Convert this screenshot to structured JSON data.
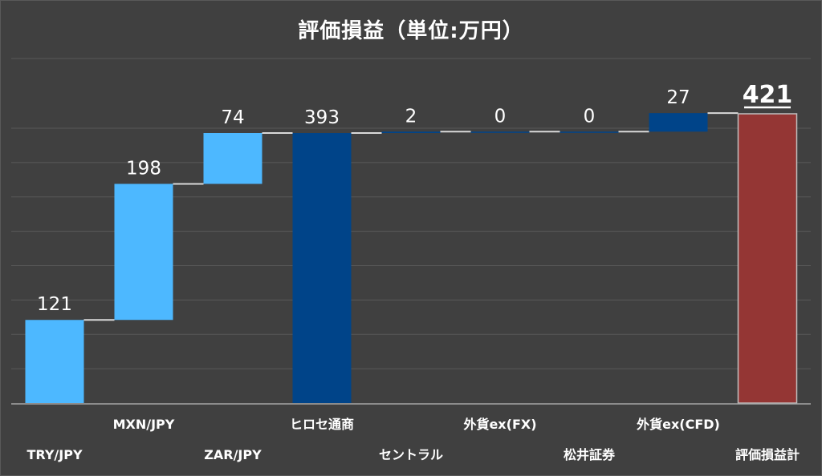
{
  "chart_data": {
    "type": "bar",
    "subtype": "waterfall",
    "title": "評価損益（単位:万円）",
    "categories": [
      "TRY/JPY",
      "MXN/JPY",
      "ZAR/JPY",
      "ヒロセ通商",
      "セントラル",
      "外貨ex(FX)",
      "松井証券",
      "外貨ex(CFD)",
      "評価損益計"
    ],
    "values": [
      121,
      198,
      74,
      393,
      2,
      0,
      0,
      27,
      421
    ],
    "labels": [
      "121",
      "198",
      "74",
      "393",
      "2",
      "0",
      "0",
      "27",
      "421"
    ],
    "kinds": [
      "increase",
      "increase",
      "increase",
      "subtotal",
      "increase",
      "increase",
      "increase",
      "increase",
      "total"
    ],
    "ylim": [
      0,
      440
    ],
    "grid": true,
    "colors": {
      "background": "#404040",
      "grid": "#595959",
      "axis": "#a6a6a6",
      "connector": "#d9d9d9",
      "fx_pair": "#4db8ff",
      "broker": "#004489",
      "total": "#943634"
    },
    "bar_colors": [
      "fx_pair",
      "fx_pair",
      "fx_pair",
      "broker",
      "broker",
      "broker",
      "broker",
      "broker",
      "total"
    ]
  }
}
